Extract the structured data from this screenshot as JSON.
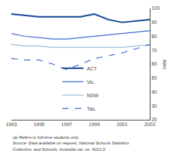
{
  "chart_data": {
    "type": "line",
    "y_label": "rate",
    "x": [
      1993,
      1994,
      1995,
      1996,
      1997,
      1998,
      1999,
      2000,
      2001,
      2002,
      2003
    ],
    "series": [
      {
        "name": "ACT",
        "color": "#1f4e9a",
        "line_style": "solid",
        "values": [
          96,
          95,
          94,
          94,
          94,
          94,
          96,
          92,
          90,
          91,
          92
        ]
      },
      {
        "name": "Vic.",
        "color": "#3366cc",
        "line_style": "solid",
        "values": [
          82,
          80,
          79,
          78,
          78,
          79,
          80,
          81,
          82,
          83,
          84
        ]
      },
      {
        "name": "NSW",
        "color": "#a8c4e0",
        "line_style": "solid",
        "values": [
          74,
          73,
          73,
          72,
          72,
          72,
          72,
          72,
          72,
          73,
          74
        ]
      },
      {
        "name": "Tas.",
        "color": "#3366cc",
        "line_style": "dashed",
        "values": [
          64,
          63,
          63,
          60,
          56,
          60,
          64,
          66,
          68,
          71,
          74
        ]
      }
    ],
    "xlim": [
      1993,
      2003
    ],
    "xticks": [
      1993,
      1995,
      1997,
      1999,
      2001,
      2003
    ],
    "ylim": [
      20,
      100
    ],
    "yticks": [
      20,
      30,
      40,
      50,
      60,
      70,
      80,
      90,
      100
    ],
    "grid": false,
    "legend": "lower center",
    "annotations": [
      "(a) Refers to full-time students only.",
      "Source: Data available on request, National Schools Statistics",
      "Collection; and Schools, Australia cat. no. 4221.0."
    ]
  }
}
